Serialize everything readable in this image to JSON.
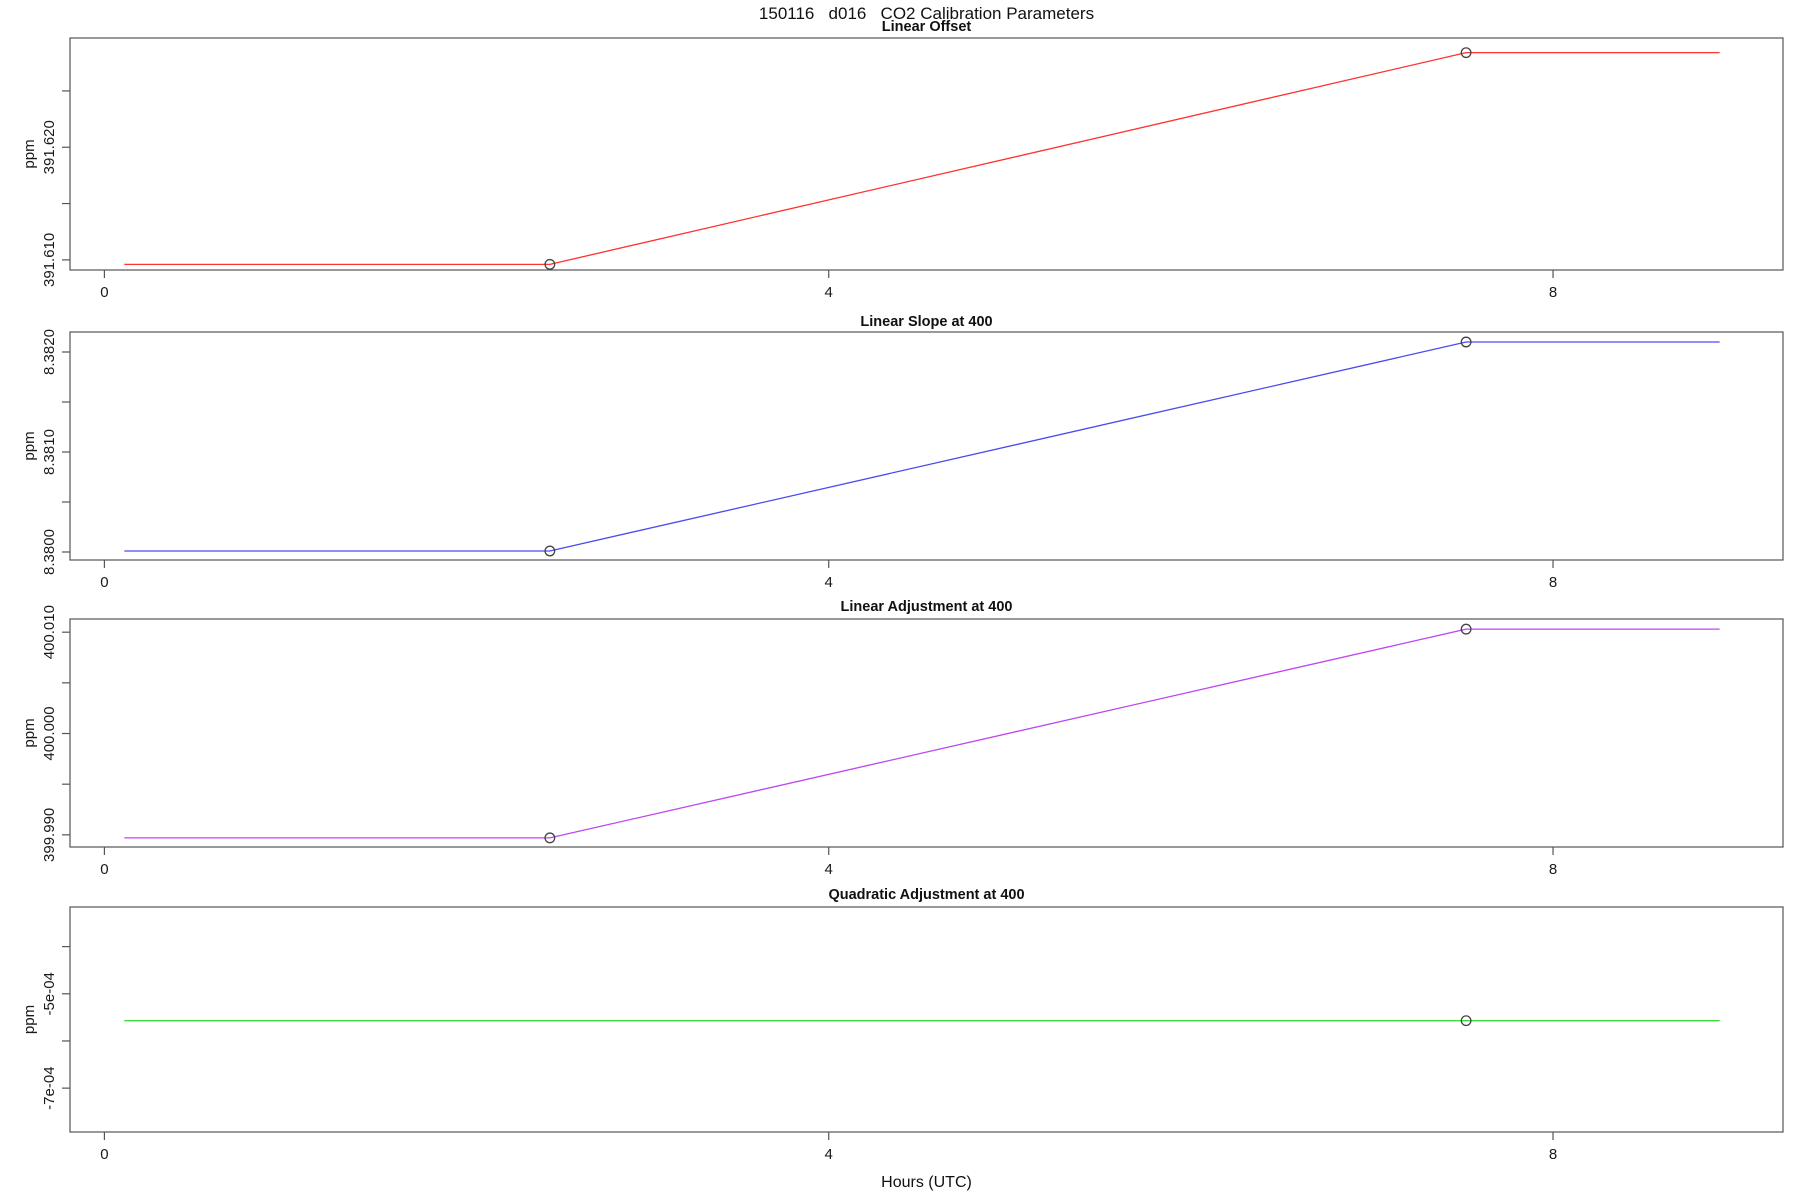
{
  "figure_title": "150116   d016   CO2 Calibration Parameters",
  "xlabel": "Hours (UTC)",
  "colors": {
    "axis": "#555555",
    "text": "#1a1a1a",
    "marker": "#444444",
    "panel1_line": "#FF3232",
    "panel2_line": "#4A4AF0",
    "panel3_line": "#BE46F0",
    "panel4_line": "#3CDC3C"
  },
  "chart_data": [
    {
      "type": "line",
      "title": "Linear Offset",
      "ylabel": "ppm",
      "color": "#FF3232",
      "x": [
        0.11,
        2.46,
        7.52,
        8.92
      ],
      "y": [
        391.6096,
        391.6096,
        391.6284,
        391.6284
      ],
      "markers": [
        {
          "x": 2.46,
          "y": 391.6096
        },
        {
          "x": 7.52,
          "y": 391.6284
        }
      ],
      "xlim": [
        -0.19,
        9.27
      ],
      "ylim": [
        391.6091,
        391.6297
      ],
      "xticks": [
        {
          "v": 0,
          "label": "0"
        },
        {
          "v": 4,
          "label": "4"
        },
        {
          "v": 8,
          "label": "8"
        }
      ],
      "yticks": [
        {
          "v": 391.61,
          "label": "391.610"
        },
        {
          "v": 391.615,
          "label": ""
        },
        {
          "v": 391.62,
          "label": "391.620"
        },
        {
          "v": 391.625,
          "label": ""
        }
      ],
      "grid": false,
      "legend": null
    },
    {
      "type": "line",
      "title": "Linear Slope at 400",
      "ylabel": "ppm",
      "color": "#4A4AF0",
      "x": [
        0.11,
        2.46,
        7.52,
        8.92
      ],
      "y": [
        8.38001,
        8.38001,
        8.3821,
        8.3821
      ],
      "markers": [
        {
          "x": 2.46,
          "y": 8.38001
        },
        {
          "x": 7.52,
          "y": 8.3821
        }
      ],
      "xlim": [
        -0.19,
        9.27
      ],
      "ylim": [
        8.37992,
        8.3822
      ],
      "xticks": [
        {
          "v": 0,
          "label": "0"
        },
        {
          "v": 4,
          "label": "4"
        },
        {
          "v": 8,
          "label": "8"
        }
      ],
      "yticks": [
        {
          "v": 8.38,
          "label": "8.3800"
        },
        {
          "v": 8.3805,
          "label": ""
        },
        {
          "v": 8.381,
          "label": "8.3810"
        },
        {
          "v": 8.3815,
          "label": ""
        },
        {
          "v": 8.382,
          "label": "8.3820"
        }
      ],
      "grid": false,
      "legend": null
    },
    {
      "type": "line",
      "title": "Linear Adjustment at 400",
      "ylabel": "ppm",
      "color": "#BE46F0",
      "x": [
        0.11,
        2.46,
        7.52,
        8.92
      ],
      "y": [
        399.9897,
        399.9897,
        400.0103,
        400.0103
      ],
      "markers": [
        {
          "x": 2.46,
          "y": 399.9897
        },
        {
          "x": 7.52,
          "y": 400.0103
        }
      ],
      "xlim": [
        -0.19,
        9.27
      ],
      "ylim": [
        399.9888,
        400.0113
      ],
      "xticks": [
        {
          "v": 0,
          "label": "0"
        },
        {
          "v": 4,
          "label": "4"
        },
        {
          "v": 8,
          "label": "8"
        }
      ],
      "yticks": [
        {
          "v": 399.99,
          "label": "399.990"
        },
        {
          "v": 399.995,
          "label": ""
        },
        {
          "v": 400.0,
          "label": "400.000"
        },
        {
          "v": 400.005,
          "label": ""
        },
        {
          "v": 400.01,
          "label": "400.010"
        }
      ],
      "grid": false,
      "legend": null
    },
    {
      "type": "line",
      "title": "Quadratic Adjustment at 400",
      "ylabel": "ppm",
      "color": "#3CDC3C",
      "x": [
        0.11,
        2.46,
        7.52,
        8.92
      ],
      "y": [
        -0.000557,
        -0.000557,
        -0.000557,
        -0.000557
      ],
      "markers": [
        {
          "x": 7.52,
          "y": -0.000557
        }
      ],
      "xlim": [
        -0.19,
        9.27
      ],
      "ylim": [
        -0.000793,
        -0.000316
      ],
      "xticks": [
        {
          "v": 0,
          "label": "0"
        },
        {
          "v": 4,
          "label": "4"
        },
        {
          "v": 8,
          "label": "8"
        }
      ],
      "yticks": [
        {
          "v": -0.0007,
          "label": "-7e-04"
        },
        {
          "v": -0.0006,
          "label": ""
        },
        {
          "v": -0.0005,
          "label": "-5e-04"
        },
        {
          "v": -0.0004,
          "label": ""
        }
      ],
      "grid": false,
      "legend": null
    }
  ]
}
